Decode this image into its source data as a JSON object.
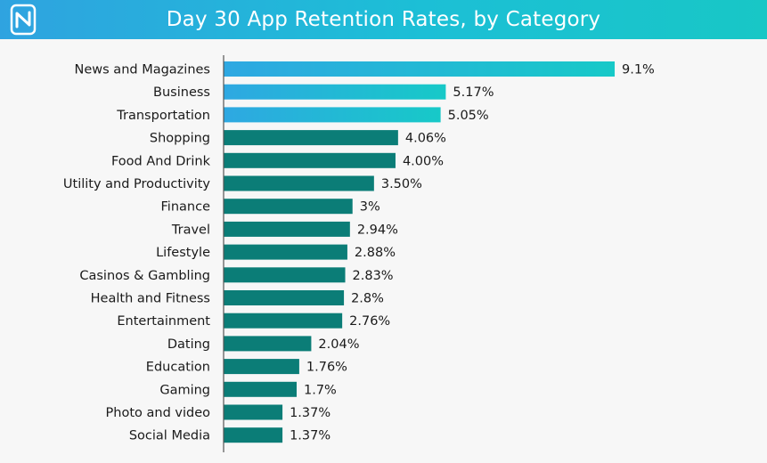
{
  "header": {
    "title": "Day 30 App Retention Rates, by Category",
    "logo_icon": "brand-logo-icon"
  },
  "colors": {
    "header_gradient_start": "#2fa3e0",
    "header_gradient_end": "#18c7c6",
    "highlight_bar_start": "#2ea8e2",
    "highlight_bar_end": "#17c9c8",
    "bar": "#0b7d77",
    "axis": "#555555"
  },
  "chart_data": {
    "type": "bar",
    "orientation": "horizontal",
    "categories": [
      "News and Magazines",
      "Business",
      "Transportation",
      "Shopping",
      "Food And Drink",
      "Utility and Productivity",
      "Finance",
      "Travel",
      "Lifestyle",
      "Casinos & Gambling",
      "Health and Fitness",
      "Entertainment",
      "Dating",
      "Education",
      "Gaming",
      "Photo and video",
      "Social Media"
    ],
    "values": [
      9.1,
      5.17,
      5.05,
      4.06,
      4.0,
      3.5,
      3.0,
      2.94,
      2.88,
      2.83,
      2.8,
      2.76,
      2.04,
      1.76,
      1.7,
      1.37,
      1.37
    ],
    "value_labels": [
      "9.1%",
      "5.17%",
      "5.05%",
      "4.06%",
      "4.00%",
      "3.50%",
      "3%",
      "2.94%",
      "2.88%",
      "2.83%",
      "2.8%",
      "2.76%",
      "2.04%",
      "1.76%",
      "1.7%",
      "1.37%",
      "1.37%"
    ],
    "highlighted": [
      true,
      true,
      true,
      false,
      false,
      false,
      false,
      false,
      false,
      false,
      false,
      false,
      false,
      false,
      false,
      false,
      false
    ],
    "title": "Day 30 App Retention Rates, by Category",
    "xlabel": "",
    "ylabel": "",
    "xlim": [
      0,
      9.1
    ],
    "grid": false,
    "legend": "none"
  }
}
